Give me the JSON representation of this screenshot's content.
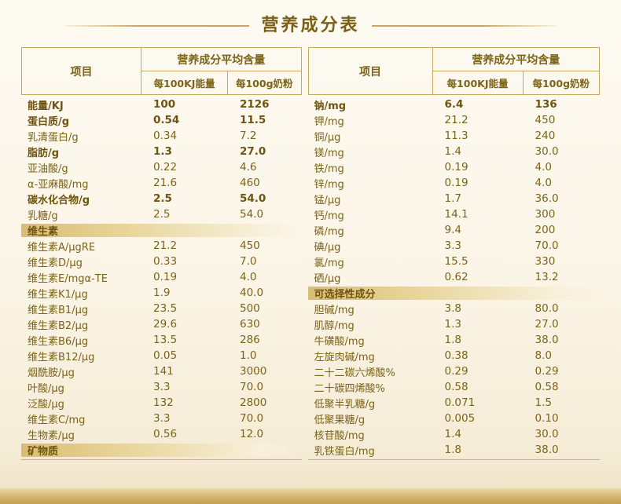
{
  "title": "营养成分表",
  "colors": {
    "text": "#7b6318",
    "bold_text": "#6e5410",
    "border": "#c3a95d",
    "section_bar_gold": "#d9bd74",
    "background_cream": "#fbf5e7",
    "bottom_band_gold": "#c29e53",
    "title_line_gold": "#c9a85c"
  },
  "tables": [
    {
      "header": {
        "item": "项目",
        "avg": "营养成分平均含量",
        "col1": "每100KJ能量",
        "col2": "每100g奶粉"
      },
      "rows": [
        {
          "type": "data",
          "bold": true,
          "label": "能量/KJ",
          "v1": "100",
          "v2": "2126"
        },
        {
          "type": "data",
          "bold": true,
          "label": "蛋白质/g",
          "v1": "0.54",
          "v2": "11.5"
        },
        {
          "type": "data",
          "bold": false,
          "label": "乳清蛋白/g",
          "v1": "0.34",
          "v2": "7.2"
        },
        {
          "type": "data",
          "bold": true,
          "label": "脂肪/g",
          "v1": "1.3",
          "v2": "27.0"
        },
        {
          "type": "data",
          "bold": false,
          "label": "亚油酸/g",
          "v1": "0.22",
          "v2": "4.6"
        },
        {
          "type": "data",
          "bold": false,
          "label": "α-亚麻酸/mg",
          "v1": "21.6",
          "v2": "460"
        },
        {
          "type": "data",
          "bold": true,
          "label": "碳水化合物/g",
          "v1": "2.5",
          "v2": "54.0"
        },
        {
          "type": "data",
          "bold": false,
          "label": "乳糖/g",
          "v1": "2.5",
          "v2": "54.0"
        },
        {
          "type": "section",
          "id": "vitamins",
          "label": "维生素"
        },
        {
          "type": "data",
          "bold": false,
          "label": "维生素A/μgRE",
          "v1": "21.2",
          "v2": "450"
        },
        {
          "type": "data",
          "bold": false,
          "label": "维生素D/μg",
          "v1": "0.33",
          "v2": "7.0"
        },
        {
          "type": "data",
          "bold": false,
          "label": "维生素E/mgα-TE",
          "v1": "0.19",
          "v2": "4.0"
        },
        {
          "type": "data",
          "bold": false,
          "label": "维生素K1/μg",
          "v1": "1.9",
          "v2": "40.0"
        },
        {
          "type": "data",
          "bold": false,
          "label": "维生素B1/μg",
          "v1": "23.5",
          "v2": "500"
        },
        {
          "type": "data",
          "bold": false,
          "label": "维生素B2/μg",
          "v1": "29.6",
          "v2": "630"
        },
        {
          "type": "data",
          "bold": false,
          "label": "维生素B6/μg",
          "v1": "13.5",
          "v2": "286"
        },
        {
          "type": "data",
          "bold": false,
          "label": "维生素B12/μg",
          "v1": "0.05",
          "v2": "1.0"
        },
        {
          "type": "data",
          "bold": false,
          "label": "烟酰胺/μg",
          "v1": "141",
          "v2": "3000"
        },
        {
          "type": "data",
          "bold": false,
          "label": "叶酸/μg",
          "v1": "3.3",
          "v2": "70.0"
        },
        {
          "type": "data",
          "bold": false,
          "label": "泛酸/μg",
          "v1": "132",
          "v2": "2800"
        },
        {
          "type": "data",
          "bold": false,
          "label": "维生素C/mg",
          "v1": "3.3",
          "v2": "70.0"
        },
        {
          "type": "data",
          "bold": false,
          "label": "生物素/μg",
          "v1": "0.56",
          "v2": "12.0"
        },
        {
          "type": "section",
          "id": "minerals",
          "label": "矿物质"
        }
      ]
    },
    {
      "header": {
        "item": "项目",
        "avg": "营养成分平均含量",
        "col1": "每100KJ能量",
        "col2": "每100g奶粉"
      },
      "rows": [
        {
          "type": "data",
          "bold": true,
          "label": "钠/mg",
          "v1": "6.4",
          "v2": "136"
        },
        {
          "type": "data",
          "bold": false,
          "label": "钾/mg",
          "v1": "21.2",
          "v2": "450"
        },
        {
          "type": "data",
          "bold": false,
          "label": "铜/μg",
          "v1": "11.3",
          "v2": "240"
        },
        {
          "type": "data",
          "bold": false,
          "label": "镁/mg",
          "v1": "1.4",
          "v2": "30.0"
        },
        {
          "type": "data",
          "bold": false,
          "label": "铁/mg",
          "v1": "0.19",
          "v2": "4.0"
        },
        {
          "type": "data",
          "bold": false,
          "label": "锌/mg",
          "v1": "0.19",
          "v2": "4.0"
        },
        {
          "type": "data",
          "bold": false,
          "label": "锰/μg",
          "v1": "1.7",
          "v2": "36.0"
        },
        {
          "type": "data",
          "bold": false,
          "label": "钙/mg",
          "v1": "14.1",
          "v2": "300"
        },
        {
          "type": "data",
          "bold": false,
          "label": "磷/mg",
          "v1": "9.4",
          "v2": "200"
        },
        {
          "type": "data",
          "bold": false,
          "label": "碘/μg",
          "v1": "3.3",
          "v2": "70.0"
        },
        {
          "type": "data",
          "bold": false,
          "label": "氯/mg",
          "v1": "15.5",
          "v2": "330"
        },
        {
          "type": "data",
          "bold": false,
          "label": "硒/μg",
          "v1": "0.62",
          "v2": "13.2"
        },
        {
          "type": "section",
          "id": "optional",
          "label": "可选择性成分"
        },
        {
          "type": "data",
          "bold": false,
          "label": "胆碱/mg",
          "v1": "3.8",
          "v2": "80.0"
        },
        {
          "type": "data",
          "bold": false,
          "label": "肌醇/mg",
          "v1": "1.3",
          "v2": "27.0"
        },
        {
          "type": "data",
          "bold": false,
          "label": "牛磺酸/mg",
          "v1": "1.8",
          "v2": "38.0"
        },
        {
          "type": "data",
          "bold": false,
          "label": "左旋肉碱/mg",
          "v1": "0.38",
          "v2": "8.0"
        },
        {
          "type": "data",
          "bold": false,
          "label": "二十二碳六烯酸%",
          "v1": "0.29",
          "v2": "0.29"
        },
        {
          "type": "data",
          "bold": false,
          "label": "二十碳四烯酸%",
          "v1": "0.58",
          "v2": "0.58"
        },
        {
          "type": "data",
          "bold": false,
          "label": "低聚半乳糖/g",
          "v1": "0.071",
          "v2": "1.5"
        },
        {
          "type": "data",
          "bold": false,
          "label": "低聚果糖/g",
          "v1": "0.005",
          "v2": "0.10"
        },
        {
          "type": "data",
          "bold": false,
          "label": "核苷酸/mg",
          "v1": "1.4",
          "v2": "30.0"
        },
        {
          "type": "data",
          "bold": false,
          "label": "乳铁蛋白/mg",
          "v1": "1.8",
          "v2": "38.0"
        }
      ]
    }
  ]
}
